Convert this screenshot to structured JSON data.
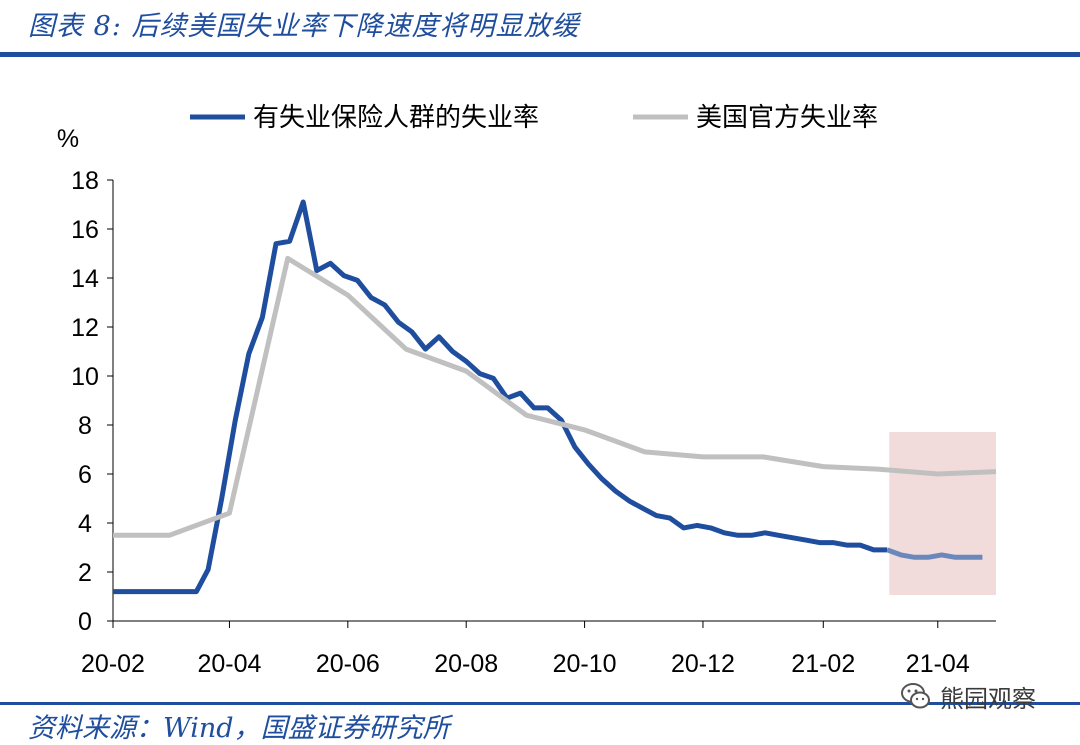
{
  "figure": {
    "title": "图表 8:  后续美国失业率下降速度将明显放缓",
    "source": "资料来源：Wind，国盛证券研究所",
    "watermark_text": "熊园观察",
    "watermark_icon": "wechat-icon"
  },
  "chart_data": {
    "type": "line",
    "title": "",
    "xlabel": "",
    "ylabel": "%",
    "ylim": [
      0,
      18
    ],
    "yticks": [
      "0",
      "2",
      "4",
      "6",
      "8",
      "10",
      "12",
      "14",
      "16",
      "18"
    ],
    "xticks": [
      "20-02",
      "20-04",
      "20-06",
      "20-08",
      "20-10",
      "20-12",
      "21-02",
      "21-04"
    ],
    "legend_position": "top",
    "grid": false,
    "highlight": {
      "x_start": "2021-03-07",
      "x_end": "2021-05-01",
      "color": "#f2dcdb"
    },
    "series": [
      {
        "name": "有失业保险人群的失业率",
        "color": "#1f4e9e",
        "faded_color": "#6b88bd",
        "points": [
          [
            "2020-02-01",
            1.2
          ],
          [
            "2020-02-15",
            1.2
          ],
          [
            "2020-03-01",
            1.2
          ],
          [
            "2020-03-15",
            1.2
          ],
          [
            "2020-03-21",
            2.1
          ],
          [
            "2020-03-28",
            5.0
          ],
          [
            "2020-04-04",
            8.2
          ],
          [
            "2020-04-11",
            10.9
          ],
          [
            "2020-04-18",
            12.4
          ],
          [
            "2020-04-25",
            15.4
          ],
          [
            "2020-05-02",
            15.5
          ],
          [
            "2020-05-09",
            17.1
          ],
          [
            "2020-05-16",
            14.3
          ],
          [
            "2020-05-23",
            14.6
          ],
          [
            "2020-05-30",
            14.1
          ],
          [
            "2020-06-06",
            13.9
          ],
          [
            "2020-06-13",
            13.2
          ],
          [
            "2020-06-20",
            12.9
          ],
          [
            "2020-06-27",
            12.2
          ],
          [
            "2020-07-04",
            11.8
          ],
          [
            "2020-07-11",
            11.1
          ],
          [
            "2020-07-18",
            11.6
          ],
          [
            "2020-07-25",
            11.0
          ],
          [
            "2020-08-01",
            10.6
          ],
          [
            "2020-08-08",
            10.1
          ],
          [
            "2020-08-15",
            9.9
          ],
          [
            "2020-08-22",
            9.1
          ],
          [
            "2020-08-29",
            9.3
          ],
          [
            "2020-09-05",
            8.7
          ],
          [
            "2020-09-12",
            8.7
          ],
          [
            "2020-09-19",
            8.2
          ],
          [
            "2020-09-26",
            7.1
          ],
          [
            "2020-10-03",
            6.4
          ],
          [
            "2020-10-10",
            5.8
          ],
          [
            "2020-10-17",
            5.3
          ],
          [
            "2020-10-24",
            4.9
          ],
          [
            "2020-10-31",
            4.6
          ],
          [
            "2020-11-07",
            4.3
          ],
          [
            "2020-11-14",
            4.2
          ],
          [
            "2020-11-21",
            3.8
          ],
          [
            "2020-11-28",
            3.9
          ],
          [
            "2020-12-05",
            3.8
          ],
          [
            "2020-12-12",
            3.6
          ],
          [
            "2020-12-19",
            3.5
          ],
          [
            "2020-12-26",
            3.5
          ],
          [
            "2021-01-02",
            3.6
          ],
          [
            "2021-01-09",
            3.5
          ],
          [
            "2021-01-16",
            3.4
          ],
          [
            "2021-01-23",
            3.3
          ],
          [
            "2021-01-30",
            3.2
          ],
          [
            "2021-02-06",
            3.2
          ],
          [
            "2021-02-13",
            3.1
          ],
          [
            "2021-02-20",
            3.1
          ],
          [
            "2021-02-27",
            2.9
          ],
          [
            "2021-03-06",
            2.9
          ],
          [
            "2021-03-13",
            2.7
          ],
          [
            "2021-03-20",
            2.6
          ],
          [
            "2021-03-27",
            2.6
          ],
          [
            "2021-04-03",
            2.7
          ],
          [
            "2021-04-10",
            2.6
          ],
          [
            "2021-04-17",
            2.6
          ],
          [
            "2021-04-24",
            2.6
          ]
        ],
        "faded_from": "2021-03-06"
      },
      {
        "name": "美国官方失业率",
        "color": "#c0c0c0",
        "points": [
          [
            "2020-02-01",
            3.5
          ],
          [
            "2020-03-01",
            3.5
          ],
          [
            "2020-04-01",
            4.4
          ],
          [
            "2020-05-01",
            14.8
          ],
          [
            "2020-06-01",
            13.3
          ],
          [
            "2020-07-01",
            11.1
          ],
          [
            "2020-08-01",
            10.2
          ],
          [
            "2020-09-01",
            8.4
          ],
          [
            "2020-10-01",
            7.8
          ],
          [
            "2020-11-01",
            6.9
          ],
          [
            "2020-12-01",
            6.7
          ],
          [
            "2021-01-01",
            6.7
          ],
          [
            "2021-02-01",
            6.3
          ],
          [
            "2021-03-01",
            6.2
          ],
          [
            "2021-04-01",
            6.0
          ],
          [
            "2021-05-01",
            6.1
          ]
        ]
      }
    ]
  }
}
